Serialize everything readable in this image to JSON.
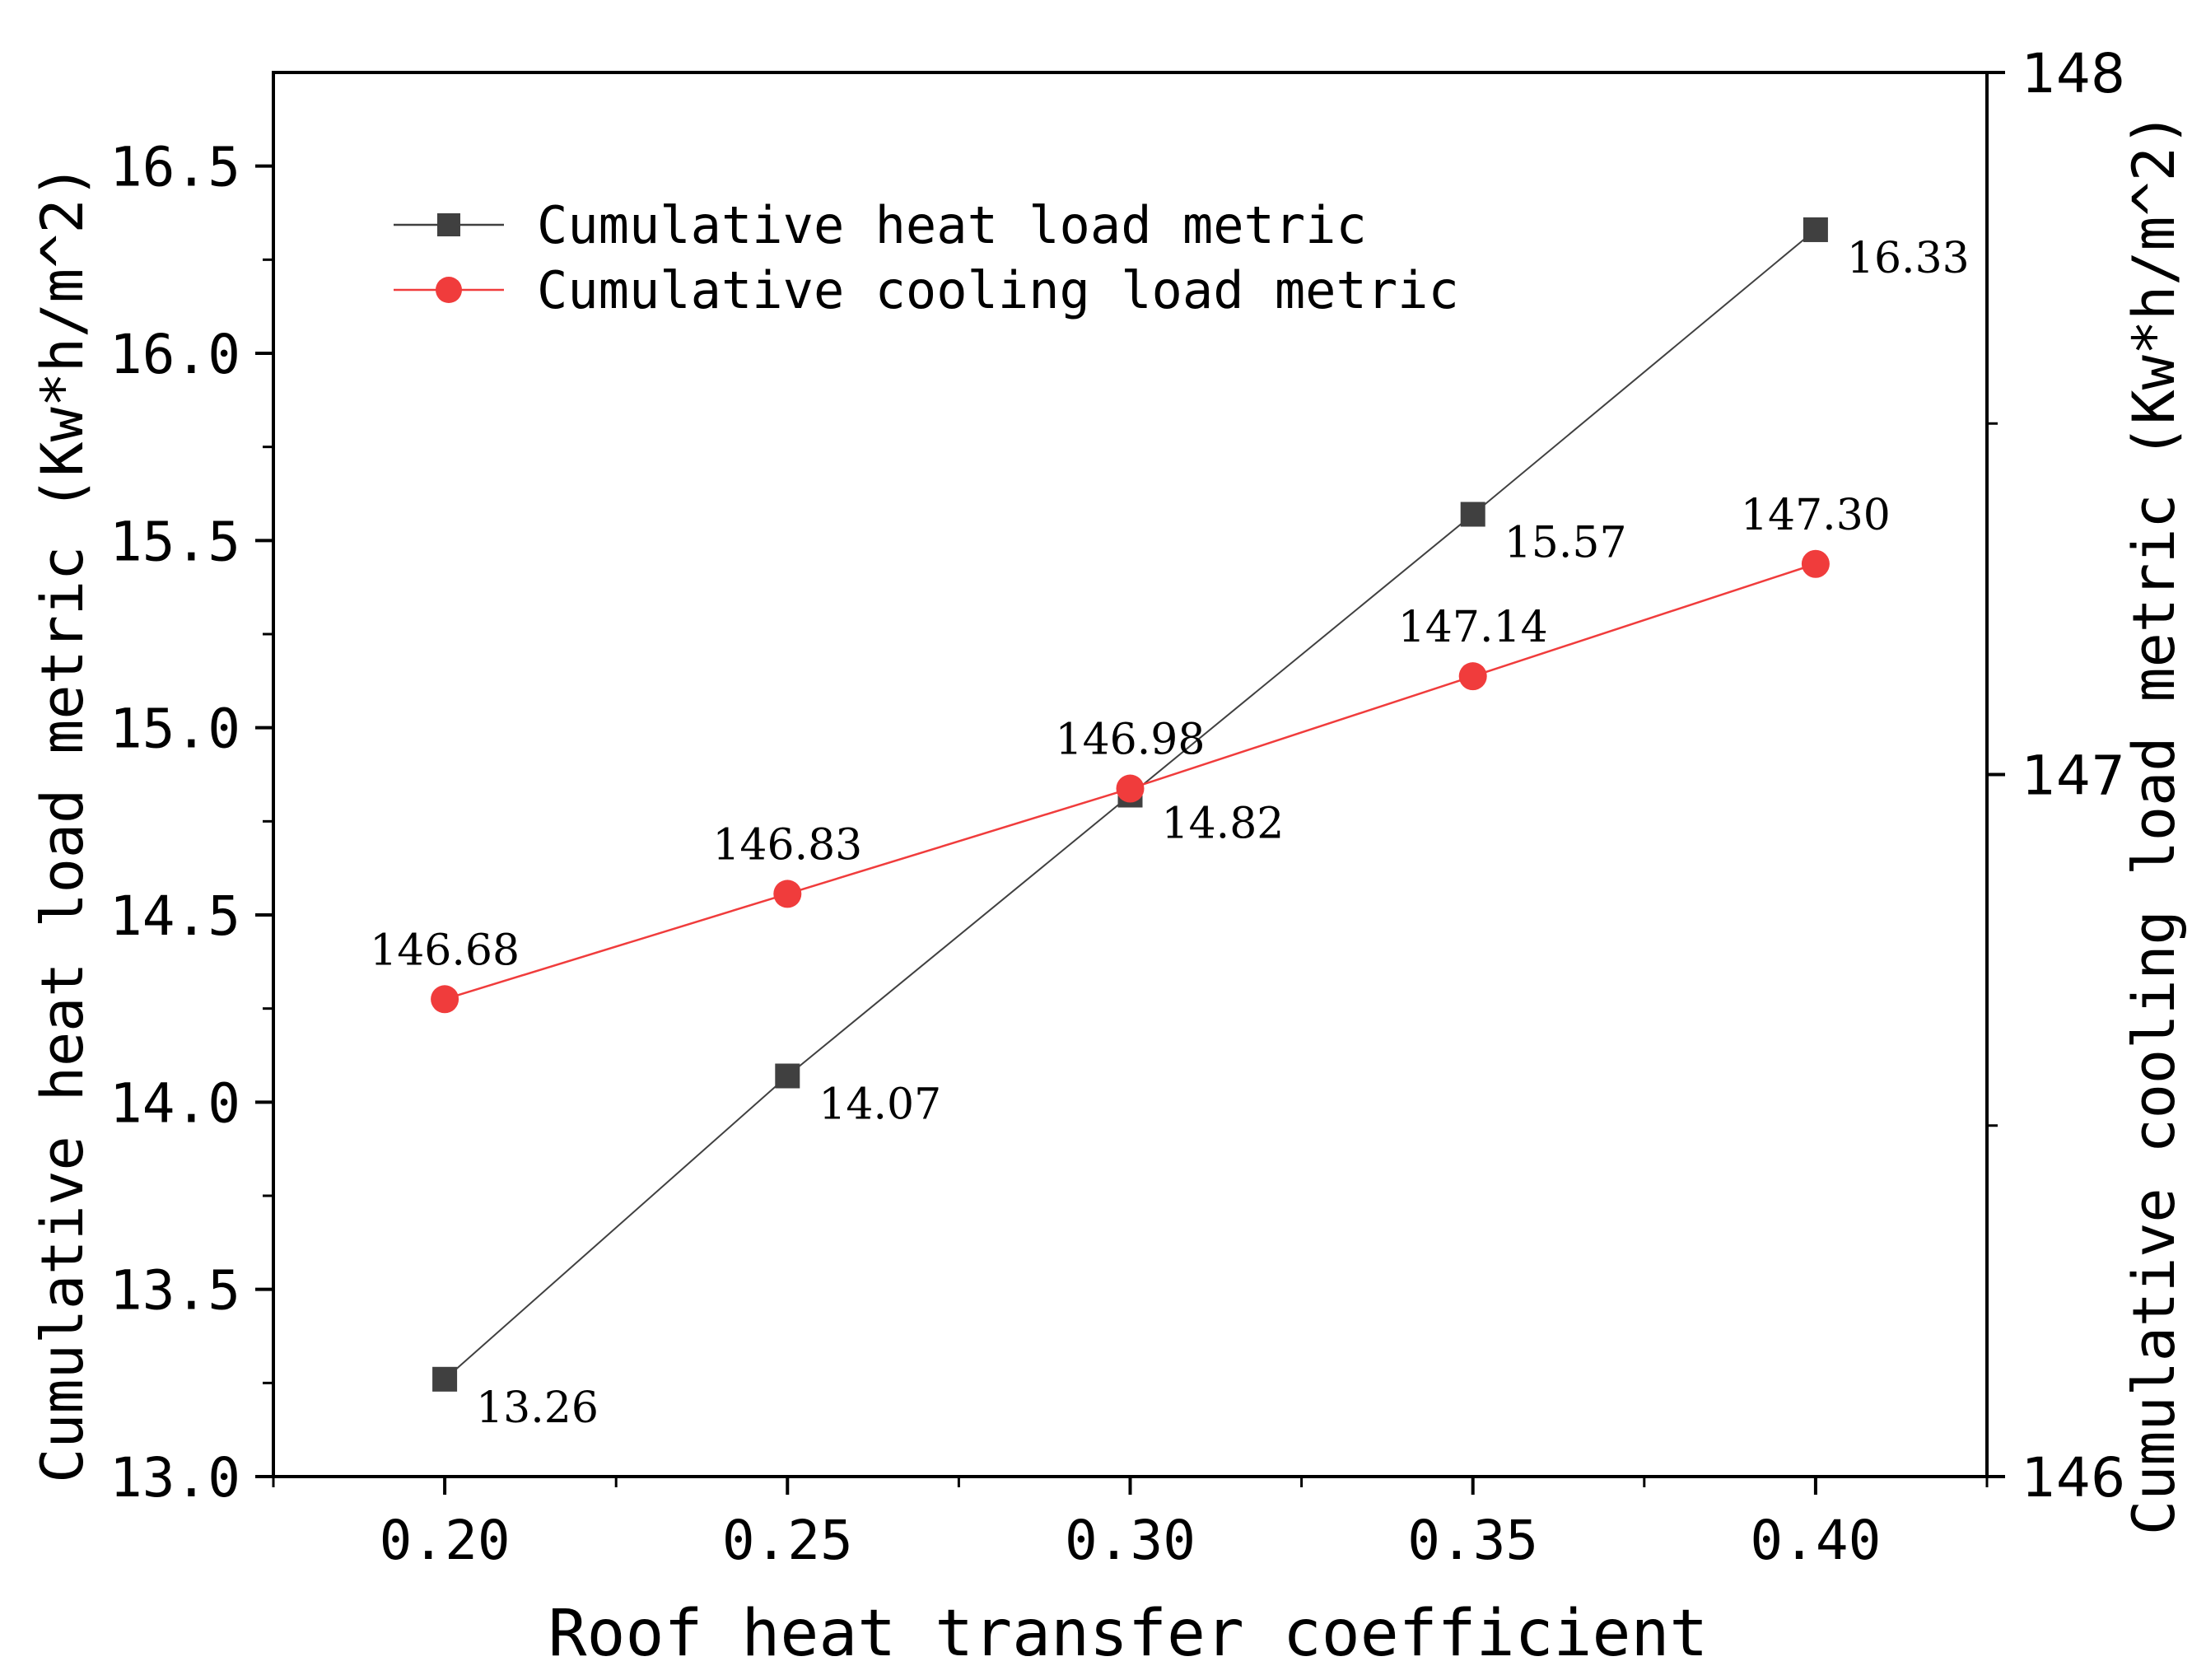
{
  "chart_data": {
    "type": "line",
    "title": "",
    "xlabel": "Roof heat transfer coefficient",
    "ylabel_left": "Cumulative heat load metric (Kw*h/m^2)",
    "ylabel_right": "Cumulative cooling load metric (Kw*h/m^2)",
    "x": [
      0.2,
      0.25,
      0.3,
      0.35,
      0.4
    ],
    "x_tick_labels": [
      "0.20",
      "0.25",
      "0.30",
      "0.35",
      "0.40"
    ],
    "xlim": [
      0.175,
      0.425
    ],
    "ylim_left": [
      13.0,
      16.75
    ],
    "ylim_right": [
      146,
      148
    ],
    "y_left_tick_labels": [
      "13.0",
      "13.5",
      "14.0",
      "14.5",
      "15.0",
      "15.5",
      "16.0",
      "16.5"
    ],
    "y_right_tick_labels": [
      "146",
      "147",
      "148"
    ],
    "grid": false,
    "legend_position": "top-left",
    "series": [
      {
        "name": "Cumulative heat load metric",
        "axis": "left",
        "marker": "square",
        "color": "#404040",
        "values": [
          13.26,
          14.07,
          14.82,
          15.57,
          16.33
        ],
        "labels": [
          "13.26",
          "14.07",
          "14.82",
          "15.57",
          "16.33"
        ]
      },
      {
        "name": "Cumulative cooling load metric",
        "axis": "right",
        "marker": "circle",
        "color": "#f03c3c",
        "values": [
          146.68,
          146.83,
          146.98,
          147.14,
          147.3
        ],
        "labels": [
          "146.68",
          "146.83",
          "146.98",
          "147.14",
          "147.30"
        ]
      }
    ]
  }
}
